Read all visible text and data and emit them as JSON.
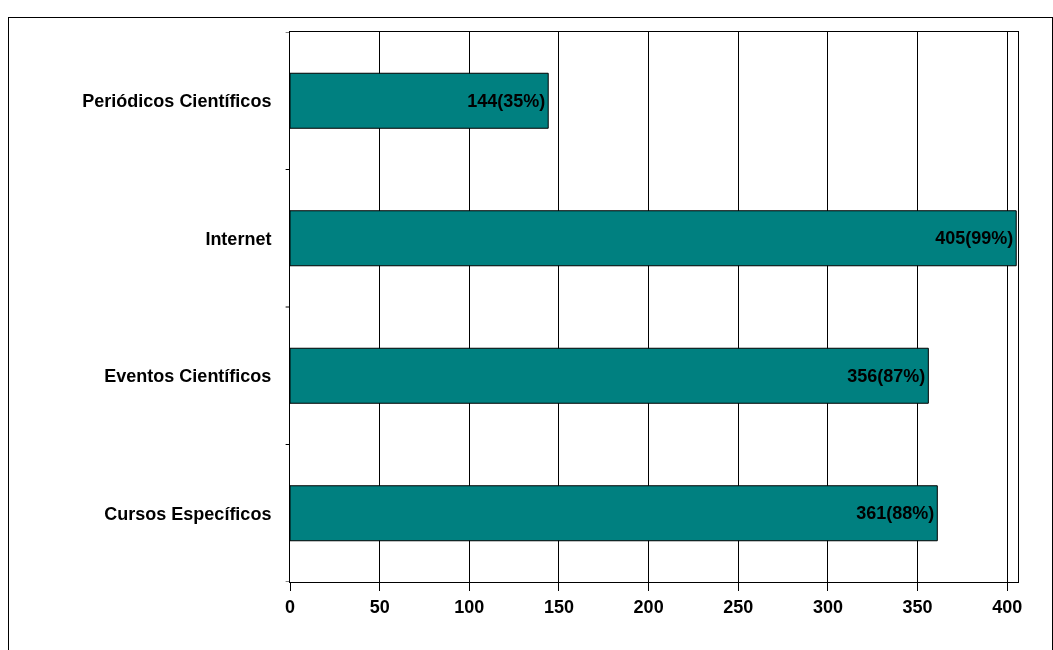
{
  "chart_data": {
    "type": "bar",
    "orientation": "horizontal",
    "categories": [
      "Periódicos Científicos",
      "Internet",
      "Eventos Científicos",
      "Cursos Específicos"
    ],
    "values": [
      144,
      405,
      356,
      361
    ],
    "value_labels": [
      "144(35%)",
      "405(99%)",
      "356(87%)",
      "361(88%)"
    ],
    "color": "#008080",
    "xlim": [
      0,
      406
    ],
    "xticks": [
      0,
      50,
      100,
      150,
      200,
      250,
      300,
      350,
      400
    ],
    "grid": "x"
  }
}
